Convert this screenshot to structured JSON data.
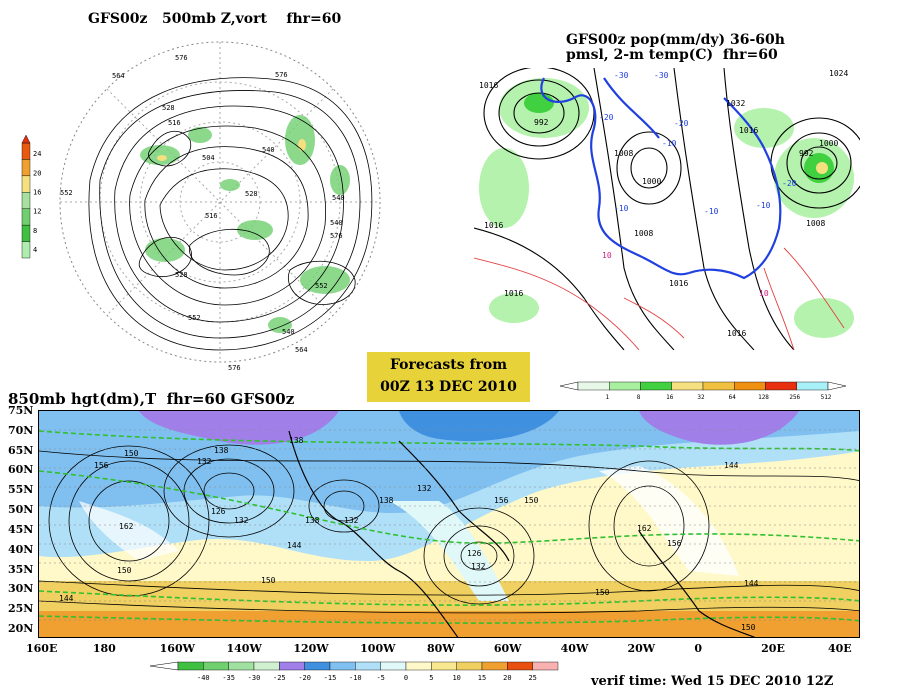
{
  "panels": {
    "top_left_title": "GFS00z   500mb Z,vort    fhr=60",
    "top_right_title_1": "GFS00z pop(mm/dy) 36-60h",
    "top_right_title_2": "pmsl, 2-m temp(C)  fhr=60",
    "bottom_title": "850mb hgt(dm),T  fhr=60 GFS00z"
  },
  "forecast_box": {
    "line1": "Forecasts from",
    "line2": "00Z 13 DEC 2010"
  },
  "verif_time": "verif time: Wed 15 DEC 2010 12Z",
  "vort_scale": {
    "labels": [
      "24",
      "20",
      "16",
      "12",
      "8",
      "4"
    ],
    "colors": [
      "#e85a10",
      "#f0a030",
      "#f5e080",
      "#a8e0a0",
      "#70d070",
      "#40c040",
      "#b0ecb0"
    ]
  },
  "precip_scale": {
    "labels": [
      "1",
      "8",
      "16",
      "32",
      "64",
      "128",
      "256",
      "512"
    ],
    "colors": [
      "#e8f8e8",
      "#a8f0a0",
      "#40d040",
      "#f5e080",
      "#f0c040",
      "#f09010",
      "#e83010",
      "#a8f0f8"
    ]
  },
  "temp_scale": {
    "labels": [
      "-40",
      "-35",
      "-30",
      "-25",
      "-20",
      "-15",
      "-10",
      "-5",
      "0",
      "5",
      "10",
      "15",
      "20",
      "25"
    ],
    "colors": [
      "#40c040",
      "#70d070",
      "#a0e0a0",
      "#d0f0d0",
      "#a080e8",
      "#4090e0",
      "#80c0f0",
      "#b0e0f8",
      "#e0f8f8",
      "#fff8c8",
      "#f8e890",
      "#f0d060",
      "#f0a030",
      "#e85010",
      "#f8b0b0"
    ]
  },
  "bottom_map": {
    "lat_labels": [
      "75N",
      "70N",
      "65N",
      "60N",
      "55N",
      "50N",
      "45N",
      "40N",
      "35N",
      "30N",
      "25N",
      "20N"
    ],
    "lon_labels": [
      "160E",
      "180",
      "160W",
      "140W",
      "120W",
      "100W",
      "80W",
      "60W",
      "40W",
      "20W",
      "0",
      "20E",
      "40E"
    ],
    "contour_labels": [
      "156",
      "150",
      "132",
      "138",
      "126",
      "132",
      "162",
      "150",
      "144",
      "138",
      "150",
      "132",
      "144",
      "138",
      "156",
      "132",
      "150",
      "126",
      "138",
      "132",
      "162",
      "156",
      "144",
      "150",
      "144",
      "150"
    ]
  },
  "top_left_map": {
    "contour_labels": [
      "576",
      "576",
      "564",
      "528",
      "516",
      "504",
      "540",
      "552",
      "540",
      "516",
      "528",
      "540",
      "576",
      "552",
      "528",
      "540",
      "564",
      "576",
      "552"
    ]
  },
  "top_right_map": {
    "pressure_labels": [
      "1016",
      "992",
      "1008",
      "1000",
      "1016",
      "1032",
      "1016",
      "1000",
      "992",
      "1008",
      "1016",
      "1008",
      "1016",
      "1016",
      "1024"
    ],
    "temp_labels": [
      "-30",
      "-30",
      "-20",
      "-20",
      "-10",
      "-10",
      "-10",
      "-10",
      "10",
      "10",
      "-20"
    ]
  }
}
